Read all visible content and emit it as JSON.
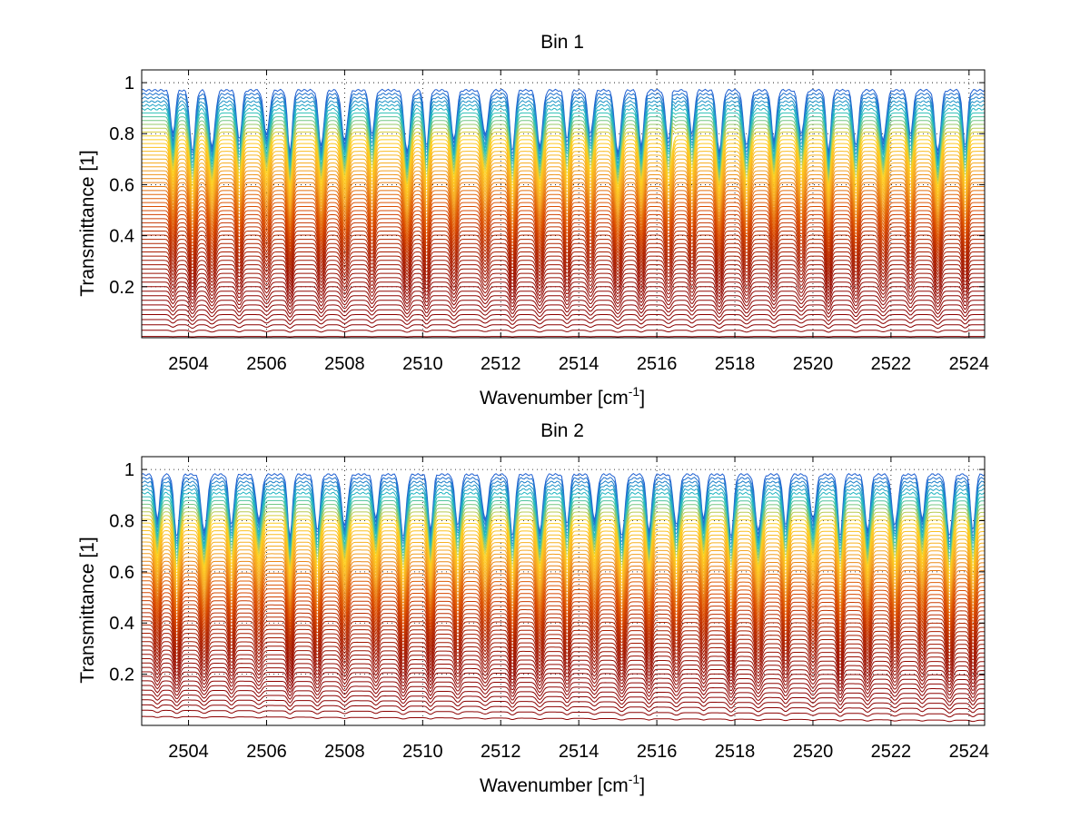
{
  "figure": {
    "background": "#ffffff"
  },
  "chart_data": [
    {
      "type": "line",
      "title": "Bin 1",
      "xlabel": "Wavenumber [cm",
      "xlabel_superscript": "-1",
      "xlabel_suffix": "]",
      "ylabel": "Transmittance [1]",
      "xlim": [
        2502.8,
        2524.4
      ],
      "ylim": [
        0,
        1.05
      ],
      "xticks": [
        2504,
        2506,
        2508,
        2510,
        2512,
        2514,
        2516,
        2518,
        2520,
        2522,
        2524
      ],
      "yticks": [
        0.2,
        0.4,
        0.6,
        0.8,
        1
      ],
      "ytick_labels": [
        "0.2",
        "0.4",
        "0.6",
        "0.8",
        "1"
      ],
      "grid": true,
      "legend": "none",
      "series_count": 60,
      "baseline_levels": [
        0.97,
        0.005
      ],
      "color_range": [
        "#8b0000",
        "#d94a00",
        "#f5a623",
        "#ffd21f",
        "#22c0c0",
        "#1f5fd1"
      ],
      "absorption_lines": [
        2503.6,
        2504.1,
        2504.6,
        2505.3,
        2506.0,
        2506.6,
        2507.4,
        2508.0,
        2508.7,
        2509.6,
        2510.1,
        2510.8,
        2511.6,
        2512.3,
        2513.0,
        2513.7,
        2514.3,
        2515.0,
        2515.6,
        2516.3,
        2516.9,
        2517.6,
        2518.3,
        2519.0,
        2519.7,
        2520.4,
        2521.1,
        2521.8,
        2522.5,
        2523.2,
        2523.9
      ],
      "spike_x": 2516.4
    },
    {
      "type": "line",
      "title": "Bin 2",
      "xlabel": "Wavenumber [cm",
      "xlabel_superscript": "-1",
      "xlabel_suffix": "]",
      "ylabel": "Transmittance [1]",
      "xlim": [
        2502.8,
        2524.4
      ],
      "ylim": [
        0,
        1.05
      ],
      "xticks": [
        2504,
        2506,
        2508,
        2510,
        2512,
        2514,
        2516,
        2518,
        2520,
        2522,
        2524
      ],
      "yticks": [
        0.2,
        0.4,
        0.6,
        0.8,
        1
      ],
      "ytick_labels": [
        "0.2",
        "0.4",
        "0.6",
        "0.8",
        "1"
      ],
      "grid": true,
      "legend": "none",
      "series_count": 60,
      "baseline_levels": [
        0.98,
        0.02
      ],
      "color_range": [
        "#8b0000",
        "#d94a00",
        "#f5a623",
        "#ffd21f",
        "#22c0c0",
        "#1f5fd1"
      ],
      "absorption_lines": [
        2503.2,
        2503.7,
        2504.4,
        2505.1,
        2505.8,
        2506.6,
        2507.3,
        2508.0,
        2508.8,
        2509.5,
        2510.2,
        2510.9,
        2511.6,
        2512.3,
        2513.0,
        2513.7,
        2514.4,
        2515.1,
        2515.8,
        2516.5,
        2517.2,
        2517.9,
        2518.6,
        2519.3,
        2520.0,
        2520.7,
        2521.4,
        2522.1,
        2522.8,
        2523.5,
        2524.1
      ]
    }
  ]
}
